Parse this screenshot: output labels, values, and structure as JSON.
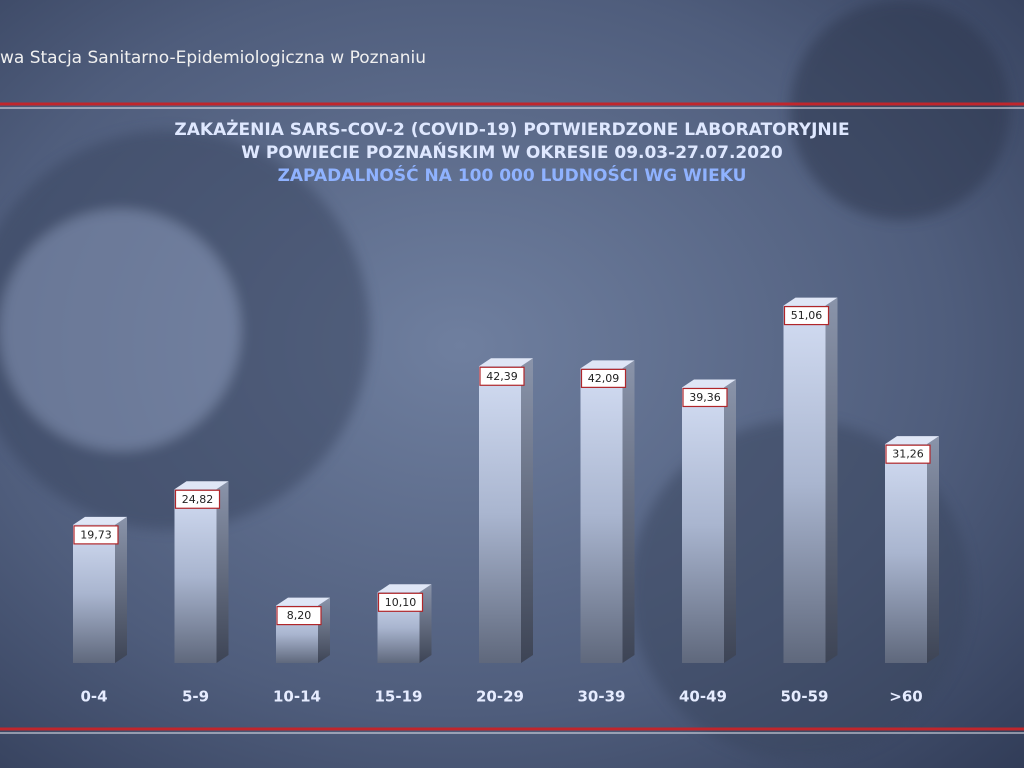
{
  "header": "wa Stacja Sanitarno-Epidemiologiczna w Poznaniu",
  "chart_data": {
    "type": "bar3d",
    "title": [
      "ZAKAŻENIA SARS-COV-2 (COVID-19) POTWIERDZONE LABORATORYJNIE",
      "W POWIECIE POZNAŃSKIM W OKRESIE 09.03-27.07.2020"
    ],
    "subtitle": "ZAPADALNOŚĆ NA 100 000 LUDNOŚCI WG WIEKU",
    "categories": [
      "0-4",
      "5-9",
      "10-14",
      "15-19",
      "20-29",
      "30-39",
      "40-49",
      "50-59",
      ">60"
    ],
    "values": [
      19.73,
      24.82,
      8.2,
      10.1,
      42.39,
      42.09,
      39.36,
      51.06,
      31.26
    ],
    "value_labels": [
      "19,73",
      "24,82",
      "8,20",
      "10,10",
      "42,39",
      "42,09",
      "39,36",
      "51,06",
      "31,26"
    ],
    "color": "#b9c6e2"
  }
}
